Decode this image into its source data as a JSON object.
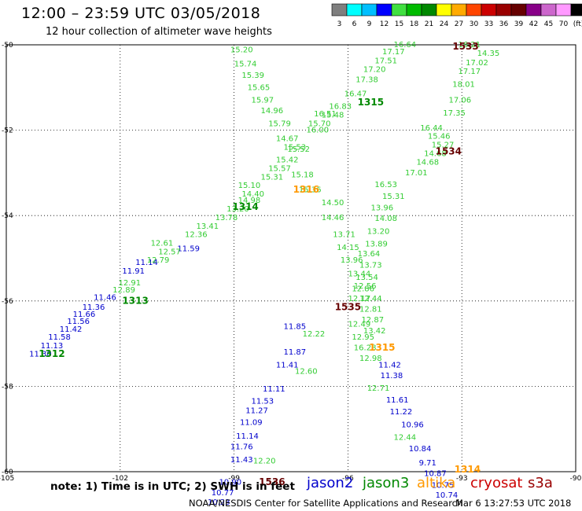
{
  "header": {
    "title": "12:00 – 23:59 UTC 03/05/2018",
    "subtitle": "12 hour collection of altimeter wave heights"
  },
  "colorbar": {
    "ticks": [
      "3",
      "6",
      "9",
      "12",
      "15",
      "18",
      "21",
      "24",
      "27",
      "30",
      "33",
      "36",
      "39",
      "42",
      "45",
      "70",
      "(ft)"
    ],
    "colors": [
      "#7f7f7f",
      "#00ffff",
      "#00bfff",
      "#0000ff",
      "#40e040",
      "#00bb00",
      "#008800",
      "#ffff00",
      "#ffaa00",
      "#ff4500",
      "#cc0000",
      "#990000",
      "#660000",
      "#880088",
      "#cc66cc",
      "#ff99ff",
      "#000000"
    ]
  },
  "chart_data": {
    "type": "scatter",
    "title": "12:00 – 23:59 UTC 03/05/2018",
    "subtitle": "12 hour collection of altimeter wave heights",
    "xlim": [
      -105,
      -90
    ],
    "ylim": [
      -60,
      -50
    ],
    "x_ticks": [
      "-105",
      "-102",
      "-99",
      "-96",
      "-93",
      "-90"
    ],
    "y_ticks": [
      "-50",
      "-52",
      "-54",
      "-56",
      "-58",
      "-60"
    ],
    "grid": true,
    "series": [
      {
        "name": "jason2",
        "color": "#0000cc",
        "points": [
          {
            "x": -104.1,
            "y": -57.25,
            "v": "11.30"
          },
          {
            "x": -103.8,
            "y": -57.05,
            "v": "11.13"
          },
          {
            "x": -103.6,
            "y": -56.85,
            "v": "11.58"
          },
          {
            "x": -103.3,
            "y": -56.67,
            "v": "11.42"
          },
          {
            "x": -103.1,
            "y": -56.48,
            "v": "11.56"
          },
          {
            "x": -102.95,
            "y": -56.32,
            "v": "11.66"
          },
          {
            "x": -102.7,
            "y": -56.15,
            "v": "11.36"
          },
          {
            "x": -102.4,
            "y": -55.92,
            "v": "11.46"
          },
          {
            "x": -101.65,
            "y": -55.3,
            "v": "11.91"
          },
          {
            "x": -101.3,
            "y": -55.1,
            "v": "11.14"
          },
          {
            "x": -100.2,
            "y": -54.78,
            "v": "11.59"
          },
          {
            "x": -97.4,
            "y": -56.6,
            "v": "11.85"
          },
          {
            "x": -97.4,
            "y": -57.2,
            "v": "11.87"
          },
          {
            "x": -97.6,
            "y": -57.5,
            "v": "11.41"
          },
          {
            "x": -97.95,
            "y": -58.07,
            "v": "11.11"
          },
          {
            "x": -98.25,
            "y": -58.35,
            "v": "11.53"
          },
          {
            "x": -98.4,
            "y": -58.57,
            "v": "11.27"
          },
          {
            "x": -98.55,
            "y": -58.85,
            "v": "11.09"
          },
          {
            "x": -98.65,
            "y": -59.17,
            "v": "11.14"
          },
          {
            "x": -98.8,
            "y": -59.42,
            "v": "11.76"
          },
          {
            "x": -98.8,
            "y": -59.72,
            "v": "11.43"
          },
          {
            "x": -99.1,
            "y": -60.25,
            "v": "10.90"
          },
          {
            "x": -99.3,
            "y": -60.5,
            "v": "10.77"
          },
          {
            "x": -99.4,
            "y": -60.72,
            "v": "10.23"
          },
          {
            "x": -94.9,
            "y": -57.5,
            "v": "11.42"
          },
          {
            "x": -94.85,
            "y": -57.75,
            "v": "11.38"
          },
          {
            "x": -94.7,
            "y": -58.32,
            "v": "11.61"
          },
          {
            "x": -94.6,
            "y": -58.6,
            "v": "11.22"
          },
          {
            "x": -94.3,
            "y": -58.9,
            "v": "10.96"
          },
          {
            "x": -94.1,
            "y": -59.47,
            "v": "10.84"
          },
          {
            "x": -93.9,
            "y": -59.8,
            "v": "9.71"
          },
          {
            "x": -93.7,
            "y": -60.05,
            "v": "10.87"
          },
          {
            "x": -93.5,
            "y": -60.32,
            "v": "10.75"
          },
          {
            "x": -93.4,
            "y": -60.55,
            "v": "10.74"
          }
        ]
      },
      {
        "name": "jason3",
        "color": "#33cc33",
        "points": [
          {
            "x": -101.9,
            "y": -55.75,
            "v": "12.89"
          },
          {
            "x": -101.75,
            "y": -55.58,
            "v": "12.91"
          },
          {
            "x": -101.0,
            "y": -55.05,
            "v": "12.79"
          },
          {
            "x": -100.7,
            "y": -54.85,
            "v": "12.57"
          },
          {
            "x": -100.9,
            "y": -54.65,
            "v": "12.61"
          },
          {
            "x": -100.0,
            "y": -54.45,
            "v": "12.36"
          },
          {
            "x": -99.7,
            "y": -54.25,
            "v": "13.41"
          },
          {
            "x": -99.2,
            "y": -54.05,
            "v": "13.78"
          },
          {
            "x": -98.9,
            "y": -53.85,
            "v": "13.20"
          },
          {
            "x": -98.6,
            "y": -53.65,
            "v": "14.98"
          },
          {
            "x": -98.6,
            "y": -53.3,
            "v": "15.10"
          },
          {
            "x": -98.5,
            "y": -53.5,
            "v": "14.40"
          },
          {
            "x": -98.0,
            "y": -53.1,
            "v": "15.31"
          },
          {
            "x": -97.8,
            "y": -52.9,
            "v": "15.57"
          },
          {
            "x": -97.6,
            "y": -52.7,
            "v": "15.42"
          },
          {
            "x": -97.3,
            "y": -52.45,
            "v": "15.52"
          },
          {
            "x": -96.8,
            "y": -52.0,
            "v": "16.00"
          },
          {
            "x": -96.4,
            "y": -51.65,
            "v": "15.48"
          },
          {
            "x": -96.2,
            "y": -51.45,
            "v": "16.83"
          },
          {
            "x": -95.8,
            "y": -51.15,
            "v": "16.47"
          },
          {
            "x": -95.5,
            "y": -50.82,
            "v": "17.38"
          },
          {
            "x": -95.3,
            "y": -50.58,
            "v": "17.20"
          },
          {
            "x": -95.0,
            "y": -50.38,
            "v": "17.51"
          },
          {
            "x": -94.8,
            "y": -50.17,
            "v": "17.17"
          },
          {
            "x": -94.5,
            "y": -50.0,
            "v": "16.64"
          },
          {
            "x": -98.8,
            "y": -50.12,
            "v": "15.20"
          },
          {
            "x": -98.7,
            "y": -50.45,
            "v": "15.74"
          },
          {
            "x": -98.5,
            "y": -50.72,
            "v": "15.39"
          },
          {
            "x": -98.35,
            "y": -51.0,
            "v": "15.65"
          },
          {
            "x": -98.25,
            "y": -51.3,
            "v": "15.97"
          },
          {
            "x": -98.0,
            "y": -51.55,
            "v": "14.96"
          },
          {
            "x": -97.8,
            "y": -51.85,
            "v": "15.79"
          },
          {
            "x": -97.6,
            "y": -52.2,
            "v": "14.67"
          },
          {
            "x": -97.4,
            "y": -52.4,
            "v": "15.53"
          },
          {
            "x": -97.2,
            "y": -53.05,
            "v": "15.18"
          },
          {
            "x": -97.0,
            "y": -53.4,
            "v": "15.36"
          },
          {
            "x": -96.4,
            "y": -53.7,
            "v": "14.50"
          },
          {
            "x": -96.4,
            "y": -54.05,
            "v": "14.46"
          },
          {
            "x": -96.1,
            "y": -54.45,
            "v": "13.71"
          },
          {
            "x": -96.0,
            "y": -54.75,
            "v": "14.15"
          },
          {
            "x": -95.9,
            "y": -55.05,
            "v": "13.96"
          },
          {
            "x": -95.7,
            "y": -55.37,
            "v": "13.44"
          },
          {
            "x": -95.55,
            "y": -55.65,
            "v": "12.56"
          },
          {
            "x": -95.4,
            "y": -55.95,
            "v": "12.44"
          },
          {
            "x": -95.4,
            "y": -56.2,
            "v": "12.81"
          },
          {
            "x": -95.35,
            "y": -56.45,
            "v": "12.87"
          },
          {
            "x": -95.3,
            "y": -56.7,
            "v": "13.42"
          },
          {
            "x": -95.0,
            "y": -53.28,
            "v": "16.53"
          },
          {
            "x": -94.8,
            "y": -53.55,
            "v": "15.31"
          },
          {
            "x": -95.1,
            "y": -53.82,
            "v": "13.96"
          },
          {
            "x": -95.0,
            "y": -54.07,
            "v": "14.08"
          },
          {
            "x": -95.2,
            "y": -54.37,
            "v": "13.20"
          },
          {
            "x": -95.25,
            "y": -54.67,
            "v": "13.89"
          },
          {
            "x": -95.45,
            "y": -54.9,
            "v": "13.64"
          },
          {
            "x": -95.4,
            "y": -55.17,
            "v": "13.73"
          },
          {
            "x": -95.5,
            "y": -55.45,
            "v": "13.54"
          },
          {
            "x": -95.6,
            "y": -55.72,
            "v": "12.86"
          },
          {
            "x": -95.7,
            "y": -55.95,
            "v": "12.17"
          },
          {
            "x": -95.7,
            "y": -56.55,
            "v": "12.49"
          },
          {
            "x": -95.6,
            "y": -56.85,
            "v": "12.95"
          },
          {
            "x": -95.55,
            "y": -57.1,
            "v": "16.28"
          },
          {
            "x": -95.4,
            "y": -57.35,
            "v": "12.98"
          },
          {
            "x": -95.2,
            "y": -58.05,
            "v": "12.71"
          },
          {
            "x": -94.5,
            "y": -59.2,
            "v": "12.44"
          },
          {
            "x": -96.9,
            "y": -56.78,
            "v": "12.22"
          },
          {
            "x": -97.1,
            "y": -57.65,
            "v": "12.60"
          },
          {
            "x": -98.2,
            "y": -59.75,
            "v": "12.20"
          },
          {
            "x": -93.8,
            "y": -51.95,
            "v": "16.44"
          },
          {
            "x": -93.6,
            "y": -52.15,
            "v": "15.46"
          },
          {
            "x": -93.5,
            "y": -52.35,
            "v": "15.27"
          },
          {
            "x": -93.7,
            "y": -52.55,
            "v": "14.68"
          },
          {
            "x": -93.9,
            "y": -52.75,
            "v": "14.68"
          },
          {
            "x": -94.2,
            "y": -53.0,
            "v": "17.01"
          },
          {
            "x": -93.2,
            "y": -51.6,
            "v": "17.35"
          },
          {
            "x": -93.05,
            "y": -51.3,
            "v": "17.06"
          },
          {
            "x": -92.95,
            "y": -50.93,
            "v": "18.01"
          },
          {
            "x": -92.8,
            "y": -50.63,
            "v": "17.17"
          },
          {
            "x": -92.6,
            "y": -50.42,
            "v": "17.02"
          },
          {
            "x": -92.3,
            "y": -50.2,
            "v": "14.35"
          },
          {
            "x": -92.8,
            "y": -50.0,
            "v": "16.21"
          },
          {
            "x": -96.75,
            "y": -51.85,
            "v": "15.70"
          },
          {
            "x": -96.6,
            "y": -51.62,
            "v": "16.51"
          }
        ]
      }
    ],
    "pass_labels": [
      {
        "text": "1312",
        "x": -103.8,
        "y": -57.25,
        "color": "#008800"
      },
      {
        "text": "1313",
        "x": -101.6,
        "y": -56.0,
        "color": "#008800"
      },
      {
        "text": "1314",
        "x": -98.7,
        "y": -53.8,
        "color": "#008800"
      },
      {
        "text": "1315",
        "x": -95.4,
        "y": -51.35,
        "color": "#008800"
      },
      {
        "text": "1316",
        "x": -97.1,
        "y": -53.4,
        "color": "#ff9900"
      },
      {
        "text": "1315",
        "x": -95.1,
        "y": -57.1,
        "color": "#ff9900"
      },
      {
        "text": "1314",
        "x": -92.85,
        "y": -59.95,
        "color": "#ff9900"
      },
      {
        "text": "1533",
        "x": -92.9,
        "y": -50.05,
        "color": "#660000"
      },
      {
        "text": "1534",
        "x": -93.35,
        "y": -52.5,
        "color": "#660000"
      },
      {
        "text": "1535",
        "x": -96.0,
        "y": -56.15,
        "color": "#660000"
      },
      {
        "text": "1536",
        "x": -98.0,
        "y": -60.25,
        "color": "#660000"
      }
    ]
  },
  "footer": {
    "note": "note:  1) Time is in UTC;  2) SWH is in feet",
    "legend": [
      {
        "label": "jason2",
        "color": "#0000cc"
      },
      {
        "label": "jason3",
        "color": "#008800"
      },
      {
        "label": "altika",
        "color": "#ff9900"
      },
      {
        "label": "cryosat",
        "color": "#cc0000"
      },
      {
        "label": "s3a",
        "color": "#990000"
      }
    ],
    "credit": "NOAA/NESDIS Center for Satellite Applications and Research",
    "timestamp": "Mar  6 13:27:53 UTC 2018"
  }
}
